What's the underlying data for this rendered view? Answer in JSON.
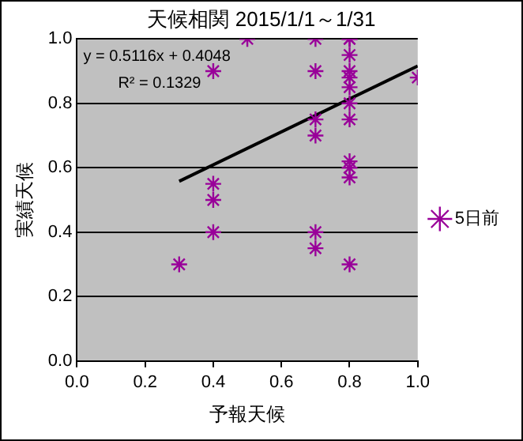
{
  "chart_data": {
    "type": "scatter",
    "title": "天候相関 2015/1/1～1/31",
    "xlabel": "予報天候",
    "ylabel": "実績天候",
    "xlim": [
      0,
      1
    ],
    "ylim": [
      0,
      1
    ],
    "xticks": [
      {
        "value": 0,
        "label": "0.0"
      },
      {
        "value": 0.2,
        "label": "0.2"
      },
      {
        "value": 0.4,
        "label": "0.4"
      },
      {
        "value": 0.6,
        "label": "0.6"
      },
      {
        "value": 0.8,
        "label": "0.8"
      },
      {
        "value": 1,
        "label": "1.0"
      }
    ],
    "yticks": [
      {
        "value": 0,
        "label": "0.0"
      },
      {
        "value": 0.2,
        "label": "0.2"
      },
      {
        "value": 0.4,
        "label": "0.4"
      },
      {
        "value": 0.6,
        "label": "0.6"
      },
      {
        "value": 0.8,
        "label": "0.8"
      },
      {
        "value": 1,
        "label": "1.0"
      }
    ],
    "grid": "y",
    "legend": "right",
    "series": [
      {
        "name": "5日前",
        "color": "#990099",
        "marker": "cross",
        "x": [
          0.3,
          0.4,
          0.4,
          0.4,
          0.4,
          0.5,
          0.7,
          0.7,
          0.7,
          0.7,
          0.7,
          0.7,
          0.8,
          0.8,
          0.8,
          0.8,
          0.8,
          0.8,
          0.8,
          0.8,
          0.8,
          0.8,
          0.8,
          0.8,
          1.0
        ],
        "values": [
          0.3,
          0.4,
          0.5,
          0.55,
          0.9,
          1.0,
          1.0,
          0.9,
          0.75,
          0.7,
          0.4,
          0.35,
          1.0,
          1.0,
          0.95,
          0.9,
          0.88,
          0.85,
          0.8,
          0.75,
          0.62,
          0.6,
          0.57,
          0.3,
          0.88
        ]
      },
      {
        "type": "line",
        "color": "#000000",
        "marker": "none",
        "x": [
          0.3,
          1.0
        ],
        "values": [
          0.558,
          0.916
        ]
      }
    ],
    "annotations": [
      "y = 0.5116x + 0.4048",
      "R² = 0.1329"
    ]
  }
}
